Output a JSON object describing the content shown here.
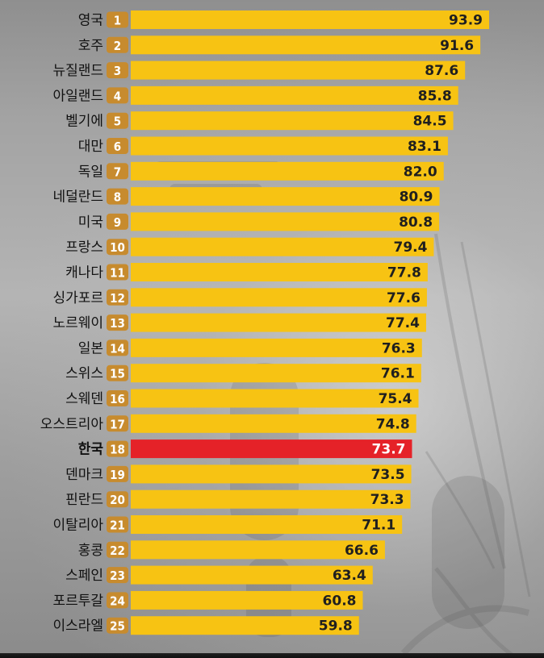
{
  "chart_data": {
    "type": "bar",
    "categories": [
      "영국",
      "호주",
      "뉴질랜드",
      "아일랜드",
      "벨기에",
      "대만",
      "독일",
      "네덜란드",
      "미국",
      "프랑스",
      "캐나다",
      "싱가포르",
      "노르웨이",
      "일본",
      "스위스",
      "스웨덴",
      "오스트리아",
      "한국",
      "덴마크",
      "핀란드",
      "이탈리아",
      "홍콩",
      "스페인",
      "포르투갈",
      "이스라엘"
    ],
    "ranks": [
      "1",
      "2",
      "3",
      "4",
      "5",
      "6",
      "7",
      "8",
      "9",
      "10",
      "11",
      "12",
      "13",
      "14",
      "15",
      "16",
      "17",
      "18",
      "19",
      "20",
      "21",
      "22",
      "23",
      "24",
      "25"
    ],
    "values": [
      93.9,
      91.6,
      87.6,
      85.8,
      84.5,
      83.1,
      82.0,
      80.9,
      80.8,
      79.4,
      77.8,
      77.6,
      77.4,
      76.3,
      76.1,
      75.4,
      74.8,
      73.7,
      73.5,
      73.3,
      71.1,
      66.6,
      63.4,
      60.8,
      59.8
    ],
    "labels": [
      "93.9",
      "91.6",
      "87.6",
      "85.8",
      "84.5",
      "83.1",
      "82.0",
      "80.9",
      "80.8",
      "79.4",
      "77.8",
      "77.6",
      "77.4",
      "76.3",
      "76.1",
      "75.4",
      "74.8",
      "73.7",
      "73.5",
      "73.3",
      "71.1",
      "66.6",
      "63.4",
      "60.8",
      "59.8"
    ],
    "highlight_category": "한국",
    "colors": {
      "bar": "#F7C313",
      "highlight_bar": "#E52228",
      "bar_text": "#1f1f1f",
      "highlight_text": "#ffffff",
      "badge": "#C78B2E",
      "label_text": "#111111"
    }
  }
}
